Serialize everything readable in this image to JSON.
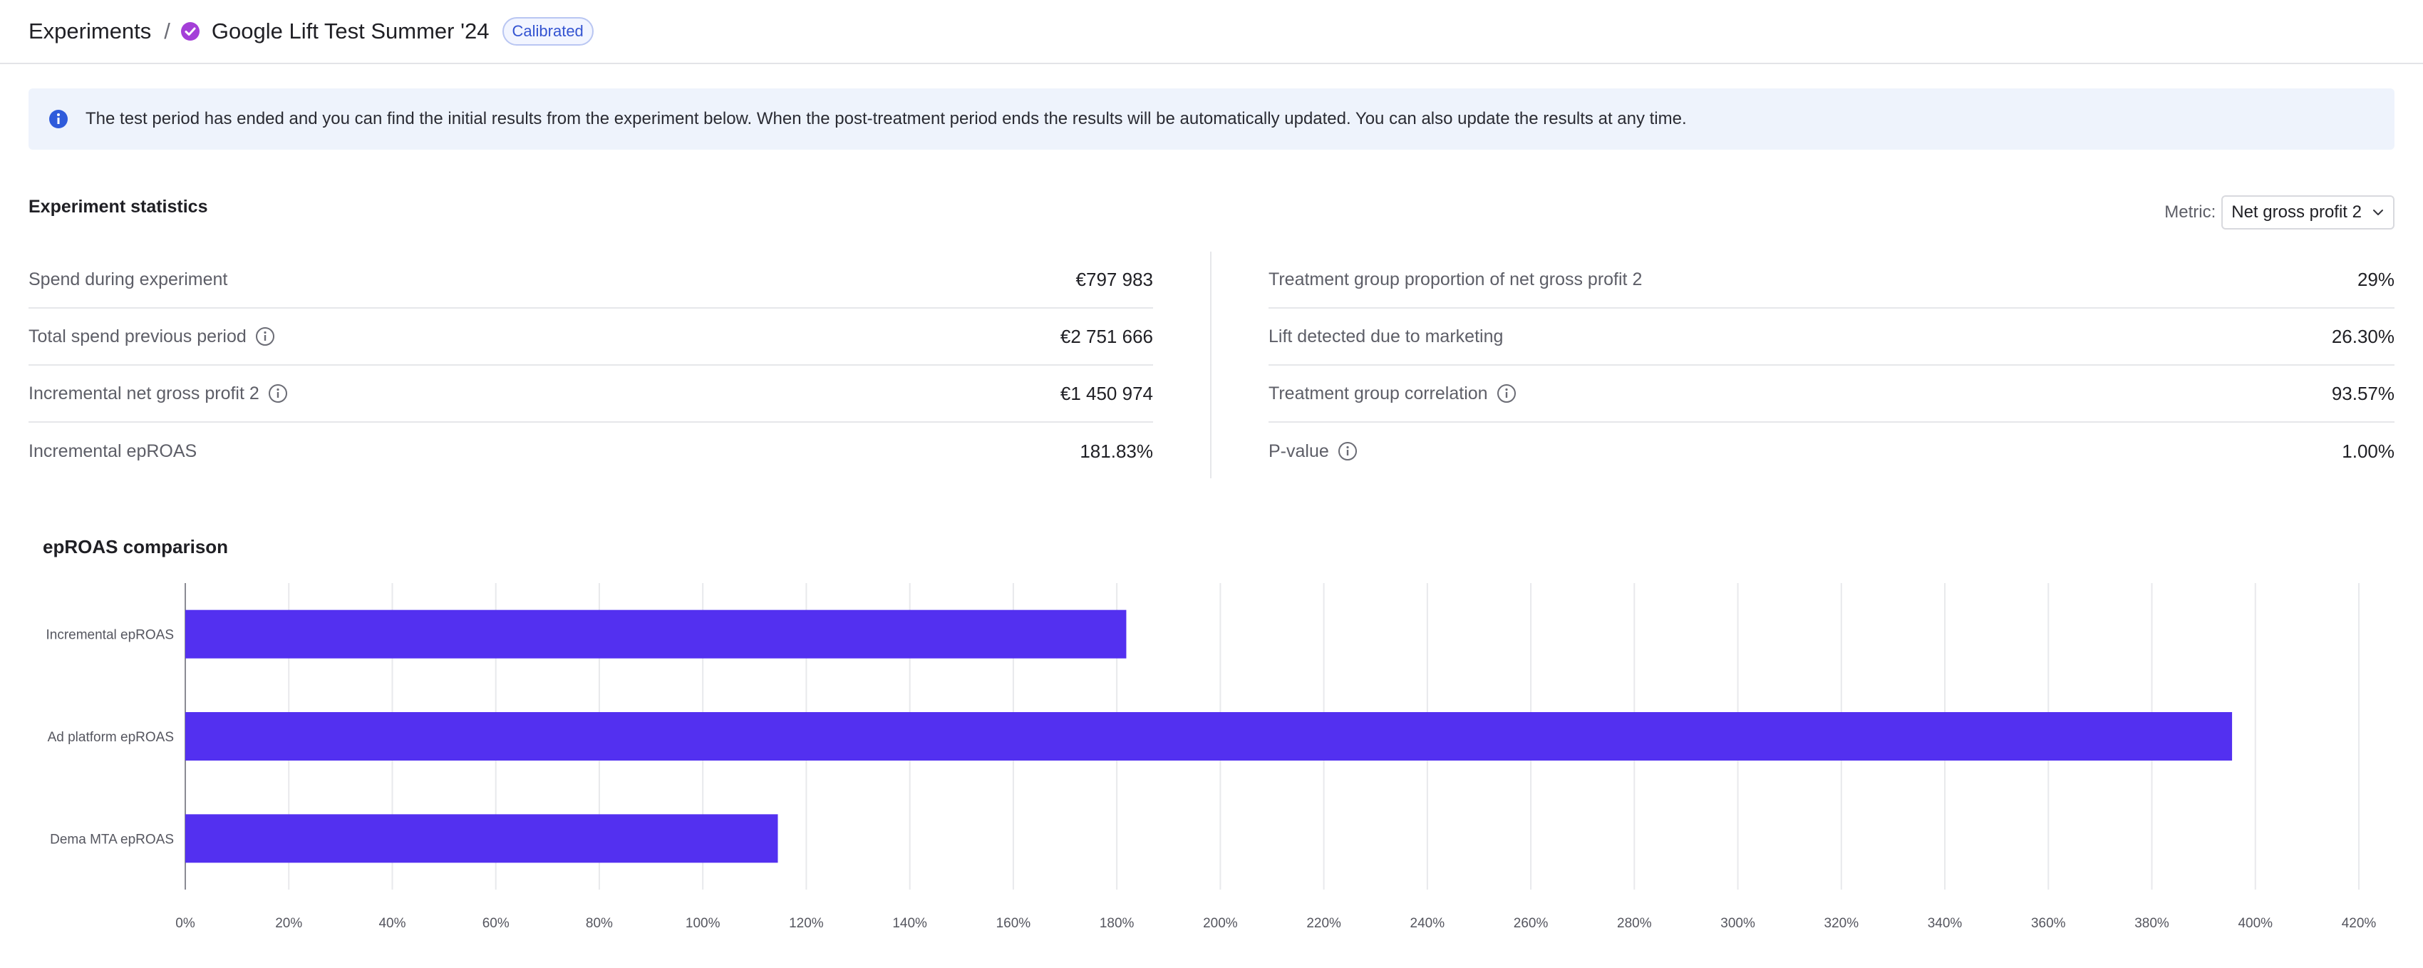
{
  "breadcrumb": {
    "root": "Experiments",
    "separator": "/",
    "title": "Google Lift Test Summer '24",
    "badge": "Calibrated",
    "status_icon": "check-circle-icon"
  },
  "banner": {
    "icon": "info-icon",
    "text": "The test period has ended and you can find the initial results from the experiment below. When the post-treatment period ends the results will be automatically updated. You can also update the results at any time."
  },
  "stats": {
    "title": "Experiment statistics",
    "metric_label": "Metric:",
    "metric_value": "Net gross profit 2",
    "left": [
      {
        "label": "Spend during experiment",
        "value": "€797 983",
        "help": false
      },
      {
        "label": "Total spend previous period",
        "value": "€2 751 666",
        "help": true
      },
      {
        "label": "Incremental net gross profit 2",
        "value": "€1 450 974",
        "help": true
      },
      {
        "label": "Incremental epROAS",
        "value": "181.83%",
        "help": false
      }
    ],
    "right": [
      {
        "label": "Treatment group proportion of net gross profit 2",
        "value": "29%",
        "help": false
      },
      {
        "label": "Lift detected due to marketing",
        "value": "26.30%",
        "help": false
      },
      {
        "label": "Treatment group correlation",
        "value": "93.57%",
        "help": true
      },
      {
        "label": "P-value",
        "value": "1.00%",
        "help": true
      }
    ]
  },
  "chart_data": {
    "type": "bar",
    "orientation": "horizontal",
    "title": "epROAS comparison",
    "categories": [
      "Incremental epROAS",
      "Ad platform epROAS",
      "Dema MTA epROAS"
    ],
    "values": [
      181.83,
      395.5,
      114.5
    ],
    "xlim": [
      0,
      420
    ],
    "xticks": [
      "0%",
      "20%",
      "40%",
      "60%",
      "80%",
      "100%",
      "120%",
      "140%",
      "160%",
      "180%",
      "200%",
      "220%",
      "240%",
      "260%",
      "280%",
      "300%",
      "320%",
      "340%",
      "360%",
      "380%",
      "400%",
      "420%"
    ],
    "bar_color": "#5330f0",
    "grid": true
  }
}
